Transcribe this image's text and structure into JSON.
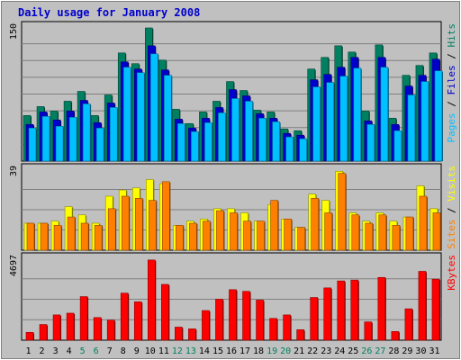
{
  "chart_data": {
    "type": "bar",
    "title": "Daily usage for January 2008",
    "days": [
      "1",
      "2",
      "3",
      "4",
      "5",
      "6",
      "7",
      "8",
      "9",
      "10",
      "11",
      "12",
      "13",
      "14",
      "15",
      "16",
      "17",
      "18",
      "19",
      "20",
      "21",
      "22",
      "23",
      "24",
      "25",
      "26",
      "27",
      "28",
      "29",
      "30",
      "31"
    ],
    "weekend_days": [
      "5",
      "6",
      "12",
      "13",
      "19",
      "20",
      "26",
      "27"
    ],
    "panels": [
      {
        "id": "hits-files-pages",
        "ymax": 150,
        "ymax_label": "150",
        "side_label_parts": [
          {
            "text": "Pages",
            "color": "#00c0ff"
          },
          {
            "text": " / ",
            "color": "#000000"
          },
          {
            "text": "Files",
            "color": "#0000cc"
          },
          {
            "text": " / ",
            "color": "#000000"
          },
          {
            "text": "Hits",
            "color": "#008060"
          }
        ],
        "series": [
          {
            "name": "Hits",
            "color": "#008060",
            "values": [
              51,
              61,
              56,
              67,
              78,
              51,
              74,
              121,
              109,
              149,
              113,
              58,
              42,
              55,
              67,
              89,
              79,
              57,
              55,
              36,
              34,
              103,
              116,
              129,
              122,
              56,
              130,
              48,
              96,
              107,
              121
            ]
          },
          {
            "name": "Files",
            "color": "#0000cc",
            "values": [
              41,
              55,
              46,
              56,
              68,
              43,
              65,
              111,
              103,
              129,
              102,
              47,
              37,
              48,
              60,
              80,
              73,
              53,
              48,
              31,
              29,
              91,
              97,
              105,
              116,
              45,
              116,
              41,
              84,
              96,
              114
            ]
          },
          {
            "name": "Pages",
            "color": "#00c0ff",
            "values": [
              37,
              50,
              39,
              49,
              64,
              37,
              60,
              105,
              99,
              120,
              96,
              42,
              33,
              43,
              54,
              70,
              67,
              48,
              44,
              27,
              25,
              83,
              88,
              95,
              104,
              41,
              105,
              34,
              74,
              89,
              101
            ]
          }
        ]
      },
      {
        "id": "visits-sites",
        "ymax": 39,
        "ymax_label": "39",
        "side_label_parts": [
          {
            "text": "Sites",
            "color": "#ff8000"
          },
          {
            "text": " / ",
            "color": "#000000"
          },
          {
            "text": "Visits",
            "color": "#ffff00"
          }
        ],
        "series": [
          {
            "name": "Visits",
            "color": "#ffff00",
            "values": [
              13,
              13,
              14,
              21,
              17,
              13,
              26,
              29,
              30,
              34,
              32,
              12,
              14,
              15,
              20,
              20,
              18,
              14,
              22,
              15,
              11,
              27,
              24,
              38,
              18,
              14,
              18,
              14,
              16,
              31,
              20
            ]
          },
          {
            "name": "Sites",
            "color": "#ff8000",
            "values": [
              13,
              13,
              12,
              16,
              13,
              12,
              20,
              26,
              25,
              24,
              33,
              12,
              13,
              14,
              19,
              18,
              14,
              14,
              24,
              15,
              11,
              25,
              18,
              37,
              17,
              13,
              17,
              12,
              16,
              26,
              18
            ]
          }
        ]
      },
      {
        "id": "kbytes",
        "ymax": 4697,
        "ymax_label": "4697",
        "side_label_parts": [
          {
            "text": "KBytes",
            "color": "#ff0000"
          }
        ],
        "series": [
          {
            "name": "KBytes",
            "color": "#ff0000",
            "values": [
              450,
              900,
              1450,
              1550,
              2500,
              1300,
              1150,
              2700,
              2200,
              4600,
              3200,
              750,
              650,
              1700,
              2350,
              2900,
              2800,
              2300,
              1250,
              1450,
              600,
              2450,
              3000,
              3400,
              3450,
              1050,
              3600,
              500,
              1800,
              3950,
              3500
            ]
          }
        ]
      }
    ]
  }
}
